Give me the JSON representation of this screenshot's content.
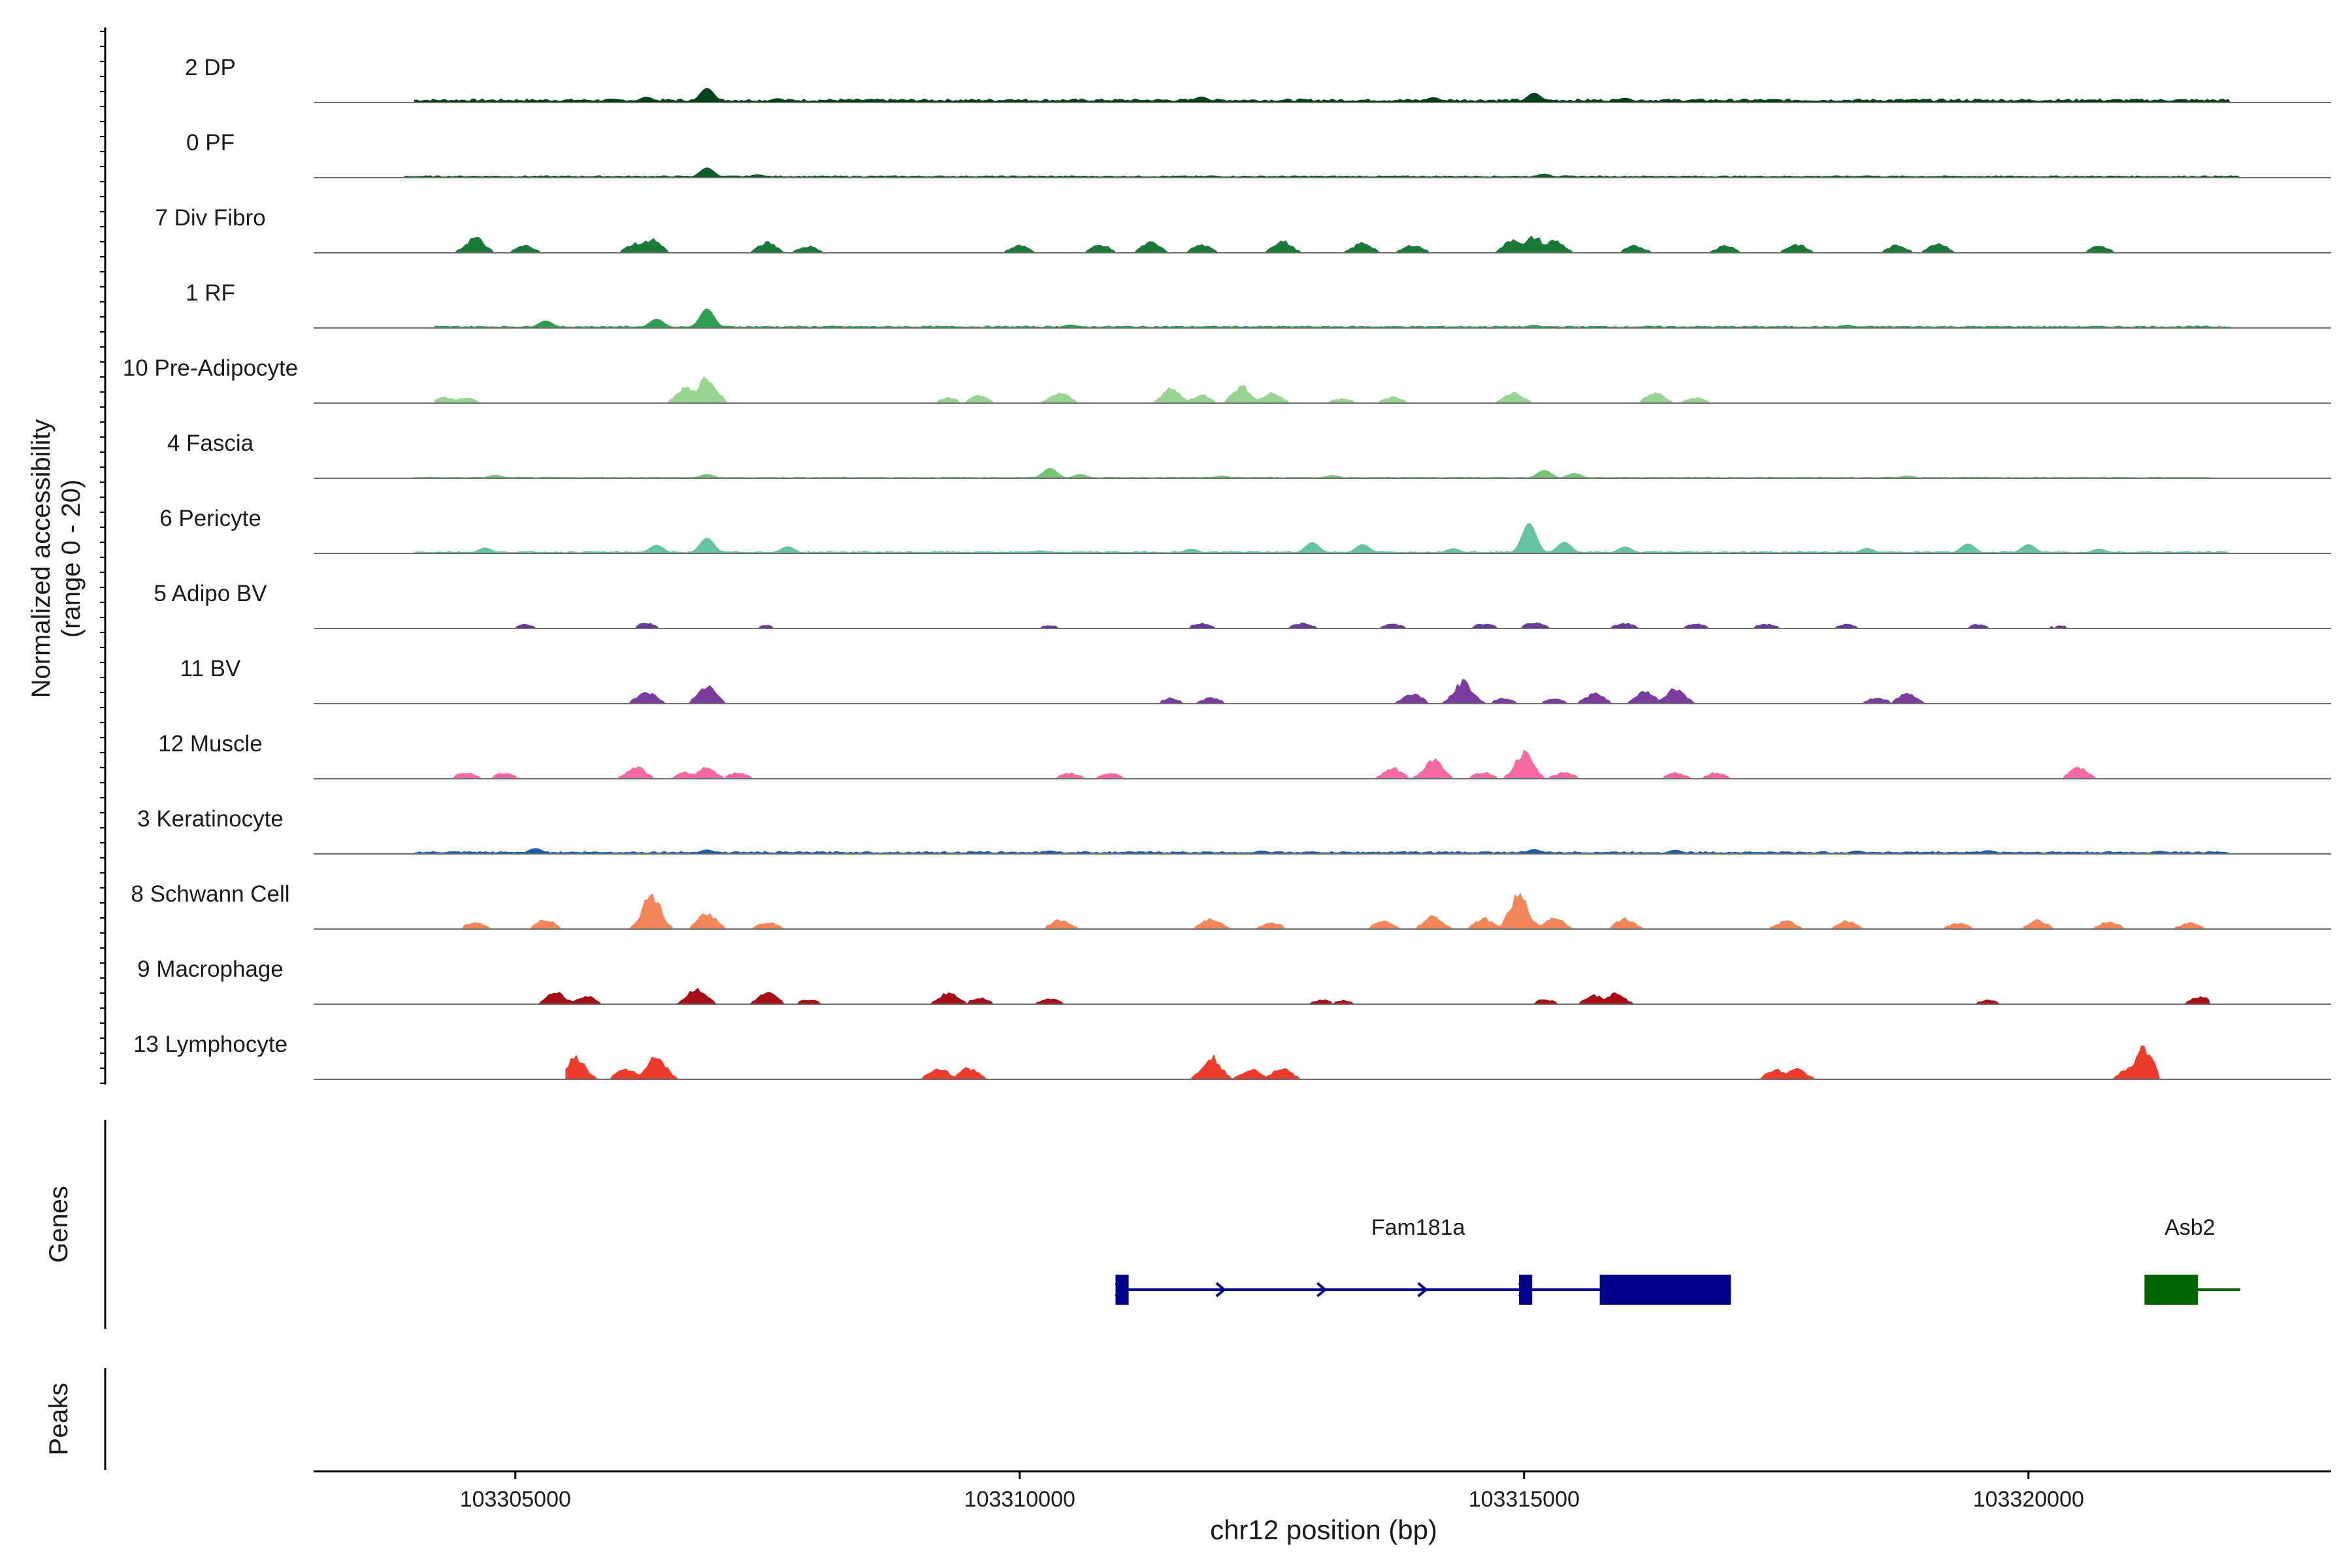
{
  "chart_data": {
    "type": "area",
    "title": "",
    "ylabel_line1": "Normalized accessibility",
    "ylabel_line2": "(range 0 - 20)",
    "xlabel": "chr12 position (bp)",
    "xlim": [
      103303000,
      103323000
    ],
    "ylim": [
      0,
      20
    ],
    "xticks": [
      103305000,
      103310000,
      103315000,
      103320000
    ],
    "xtick_labels": [
      "103305000",
      "103310000",
      "103315000",
      "103320000"
    ],
    "tracks": [
      {
        "name": "2 DP",
        "color": "#00441b",
        "start": 103304000,
        "end": 103322000,
        "baseline": 0.9,
        "peaks": [
          [
            103306300,
            1.6
          ],
          [
            103306900,
            4.2
          ],
          [
            103307600,
            1.2
          ],
          [
            103309900,
            0.9
          ],
          [
            103311800,
            1.7
          ],
          [
            103314100,
            1.5
          ],
          [
            103315100,
            2.8
          ],
          [
            103316000,
            1.3
          ],
          [
            103320600,
            0.8
          ]
        ]
      },
      {
        "name": "0 PF",
        "color": "#0f5c2a",
        "start": 103303900,
        "end": 103322100,
        "baseline": 0.5,
        "peaks": [
          [
            103306900,
            2.9
          ],
          [
            103307400,
            0.9
          ],
          [
            103311900,
            0.6
          ],
          [
            103315200,
            1.1
          ],
          [
            103318400,
            0.6
          ]
        ]
      },
      {
        "name": "7 Div Fibro",
        "color": "#1a7a3a",
        "start": 103304400,
        "end": 103321000,
        "baseline": 0,
        "peaks": [
          [
            103304600,
            4.6
          ],
          [
            103305100,
            2.2
          ],
          [
            103306200,
            3.0
          ],
          [
            103306350,
            4.2
          ],
          [
            103307500,
            3.1
          ],
          [
            103307900,
            2.0
          ],
          [
            103310000,
            2.2
          ],
          [
            103310800,
            2.4
          ],
          [
            103311300,
            3.1
          ],
          [
            103311800,
            2.4
          ],
          [
            103312600,
            3.6
          ],
          [
            103313400,
            3.1
          ],
          [
            103313900,
            2.4
          ],
          [
            103314900,
            4.3
          ],
          [
            103315100,
            4.8
          ],
          [
            103315300,
            3.8
          ],
          [
            103316100,
            2.1
          ],
          [
            103317000,
            2.2
          ],
          [
            103317700,
            2.6
          ],
          [
            103318700,
            2.3
          ],
          [
            103319100,
            3.0
          ],
          [
            103320700,
            2.1
          ]
        ]
      },
      {
        "name": "1 RF",
        "color": "#2f9e4f",
        "start": 103304200,
        "end": 103322000,
        "baseline": 0.5,
        "peaks": [
          [
            103305300,
            2.1
          ],
          [
            103306400,
            2.6
          ],
          [
            103306900,
            5.6
          ],
          [
            103310500,
            0.9
          ],
          [
            103315100,
            0.8
          ],
          [
            103318200,
            0.8
          ]
        ]
      },
      {
        "name": "10 Pre-Adipocyte",
        "color": "#97d591",
        "start": 103304200,
        "end": 103321700,
        "baseline": 0,
        "peaks": [
          [
            103304300,
            1.8
          ],
          [
            103304500,
            1.6
          ],
          [
            103306900,
            8.2
          ],
          [
            103306700,
            5.1
          ],
          [
            103309300,
            1.6
          ],
          [
            103309600,
            2.2
          ],
          [
            103310400,
            3.1
          ],
          [
            103311500,
            4.3
          ],
          [
            103311800,
            2.4
          ],
          [
            103312200,
            5.0
          ],
          [
            103312500,
            3.1
          ],
          [
            103313200,
            1.5
          ],
          [
            103313700,
            1.8
          ],
          [
            103314900,
            3.2
          ],
          [
            103316300,
            3.1
          ],
          [
            103316700,
            1.6
          ]
        ]
      },
      {
        "name": "4 Fascia",
        "color": "#74c476",
        "start": 103304000,
        "end": 103321800,
        "baseline": 0.3,
        "peaks": [
          [
            103304800,
            0.9
          ],
          [
            103306900,
            1.1
          ],
          [
            103310300,
            2.9
          ],
          [
            103310600,
            1.1
          ],
          [
            103312000,
            0.7
          ],
          [
            103313100,
            0.8
          ],
          [
            103315200,
            2.3
          ],
          [
            103315500,
            1.4
          ],
          [
            103318800,
            0.7
          ]
        ]
      },
      {
        "name": "6 Pericyte",
        "color": "#66c2a4",
        "start": 103304000,
        "end": 103322000,
        "baseline": 0.5,
        "peaks": [
          [
            103304700,
            1.6
          ],
          [
            103306400,
            2.4
          ],
          [
            103306900,
            4.5
          ],
          [
            103307700,
            2.0
          ],
          [
            103310200,
            0.8
          ],
          [
            103311700,
            1.3
          ],
          [
            103312900,
            3.2
          ],
          [
            103313400,
            2.6
          ],
          [
            103314300,
            1.4
          ],
          [
            103315050,
            8.8
          ],
          [
            103315400,
            3.3
          ],
          [
            103316000,
            1.9
          ],
          [
            103318400,
            1.5
          ],
          [
            103319400,
            2.8
          ],
          [
            103320000,
            2.6
          ],
          [
            103320700,
            1.3
          ]
        ]
      },
      {
        "name": "5 Adipo BV",
        "color": "#6a3d9a",
        "start": 103304400,
        "end": 103321700,
        "baseline": 0,
        "peaks": [
          [
            103305100,
            1.2
          ],
          [
            103306300,
            1.6
          ],
          [
            103307500,
            0.9
          ],
          [
            103310300,
            0.9
          ],
          [
            103311800,
            1.6
          ],
          [
            103312800,
            1.6
          ],
          [
            103313700,
            1.4
          ],
          [
            103314600,
            1.5
          ],
          [
            103315100,
            1.8
          ],
          [
            103316000,
            1.6
          ],
          [
            103316700,
            1.4
          ],
          [
            103317400,
            1.4
          ],
          [
            103318200,
            1.3
          ],
          [
            103319500,
            1.2
          ],
          [
            103320300,
            0.9
          ]
        ]
      },
      {
        "name": "11 BV",
        "color": "#7a3d9e",
        "start": 103306100,
        "end": 103319000,
        "baseline": 0,
        "peaks": [
          [
            103306300,
            3.7
          ],
          [
            103306900,
            5.1
          ],
          [
            103311500,
            1.6
          ],
          [
            103311900,
            1.8
          ],
          [
            103313900,
            3.1
          ],
          [
            103314400,
            6.6
          ],
          [
            103314800,
            1.6
          ],
          [
            103315300,
            1.6
          ],
          [
            103315700,
            3.1
          ],
          [
            103316200,
            3.6
          ],
          [
            103316500,
            4.6
          ],
          [
            103318500,
            1.8
          ],
          [
            103318800,
            3.0
          ]
        ]
      },
      {
        "name": "12 Muscle",
        "color": "#f768a1",
        "start": 103304300,
        "end": 103320700,
        "baseline": 0,
        "peaks": [
          [
            103304500,
            1.9
          ],
          [
            103304900,
            1.9
          ],
          [
            103306200,
            3.6
          ],
          [
            103306700,
            2.0
          ],
          [
            103306900,
            3.4
          ],
          [
            103307200,
            1.8
          ],
          [
            103310500,
            1.7
          ],
          [
            103310900,
            1.8
          ],
          [
            103313700,
            3.2
          ],
          [
            103314100,
            5.6
          ],
          [
            103314600,
            2.0
          ],
          [
            103315000,
            7.6
          ],
          [
            103315400,
            2.0
          ],
          [
            103316500,
            1.9
          ],
          [
            103316900,
            1.8
          ],
          [
            103320500,
            3.3
          ]
        ]
      },
      {
        "name": "3 Keratinocyte",
        "color": "#1f5ea8",
        "start": 103304000,
        "end": 103322000,
        "baseline": 0.6,
        "peaks": [
          [
            103305200,
            1.6
          ],
          [
            103306900,
            1.2
          ],
          [
            103310300,
            0.9
          ],
          [
            103312400,
            0.9
          ],
          [
            103315100,
            1.3
          ],
          [
            103316500,
            1.1
          ],
          [
            103318300,
            0.9
          ],
          [
            103319600,
            1.0
          ],
          [
            103321300,
            0.8
          ]
        ]
      },
      {
        "name": "8 Schwann Cell",
        "color": "#f4875a",
        "start": 103303900,
        "end": 103322100,
        "baseline": 0,
        "peaks": [
          [
            103304600,
            2.0
          ],
          [
            103305300,
            2.9
          ],
          [
            103306350,
            10.3
          ],
          [
            103306900,
            4.6
          ],
          [
            103307500,
            2.0
          ],
          [
            103310400,
            2.7
          ],
          [
            103311900,
            3.3
          ],
          [
            103312500,
            1.9
          ],
          [
            103313600,
            2.3
          ],
          [
            103314100,
            3.7
          ],
          [
            103314600,
            3.1
          ],
          [
            103314950,
            10.0
          ],
          [
            103315300,
            3.6
          ],
          [
            103316000,
            3.1
          ],
          [
            103317600,
            2.4
          ],
          [
            103318200,
            2.5
          ],
          [
            103319300,
            1.9
          ],
          [
            103320100,
            2.6
          ],
          [
            103320800,
            2.2
          ],
          [
            103321600,
            1.9
          ]
        ]
      },
      {
        "name": "9 Macrophage",
        "color": "#a50f15",
        "start": 103305100,
        "end": 103321800,
        "baseline": 0,
        "peaks": [
          [
            103305400,
            3.5
          ],
          [
            103305700,
            2.4
          ],
          [
            103306800,
            4.8
          ],
          [
            103307500,
            3.3
          ],
          [
            103307900,
            1.4
          ],
          [
            103309300,
            3.6
          ],
          [
            103309600,
            1.9
          ],
          [
            103310300,
            1.7
          ],
          [
            103313000,
            1.3
          ],
          [
            103313200,
            1.1
          ],
          [
            103315200,
            1.4
          ],
          [
            103315700,
            2.6
          ],
          [
            103315900,
            3.2
          ],
          [
            103319600,
            1.2
          ],
          [
            103321700,
            2.2
          ]
        ]
      },
      {
        "name": "13 Lymphocyte",
        "color": "#ef3b2c",
        "start": 103305500,
        "end": 103321300,
        "baseline": 0,
        "peaks": [
          [
            103305600,
            6.5
          ],
          [
            103306100,
            3.2
          ],
          [
            103306400,
            6.8
          ],
          [
            103309200,
            3.4
          ],
          [
            103309500,
            3.4
          ],
          [
            103311900,
            6.9
          ],
          [
            103312300,
            3.3
          ],
          [
            103312600,
            3.4
          ],
          [
            103317500,
            3.0
          ],
          [
            103317700,
            3.0
          ],
          [
            103321000,
            3.3
          ],
          [
            103321150,
            9.6
          ]
        ]
      }
    ],
    "genes_label": "Genes",
    "peaks_label": "Peaks",
    "genes": [
      {
        "name": "Fam181a",
        "strand": "+",
        "color": "#00008b",
        "start": 103310950,
        "end": 103317050,
        "exons": [
          [
            103310950,
            103311080,
            "thin"
          ],
          [
            103314950,
            103315080,
            "thin"
          ],
          [
            103315750,
            103317050,
            "thick"
          ]
        ],
        "arrows": [
          103310950,
          103311950,
          103312950,
          103313950,
          103314950
        ]
      },
      {
        "name": "Asb2",
        "strand": "-",
        "color": "#006400",
        "start": 103321150,
        "end": 103322100,
        "exons": [
          [
            103321150,
            103321680,
            "thick"
          ]
        ],
        "arrows": []
      }
    ]
  }
}
